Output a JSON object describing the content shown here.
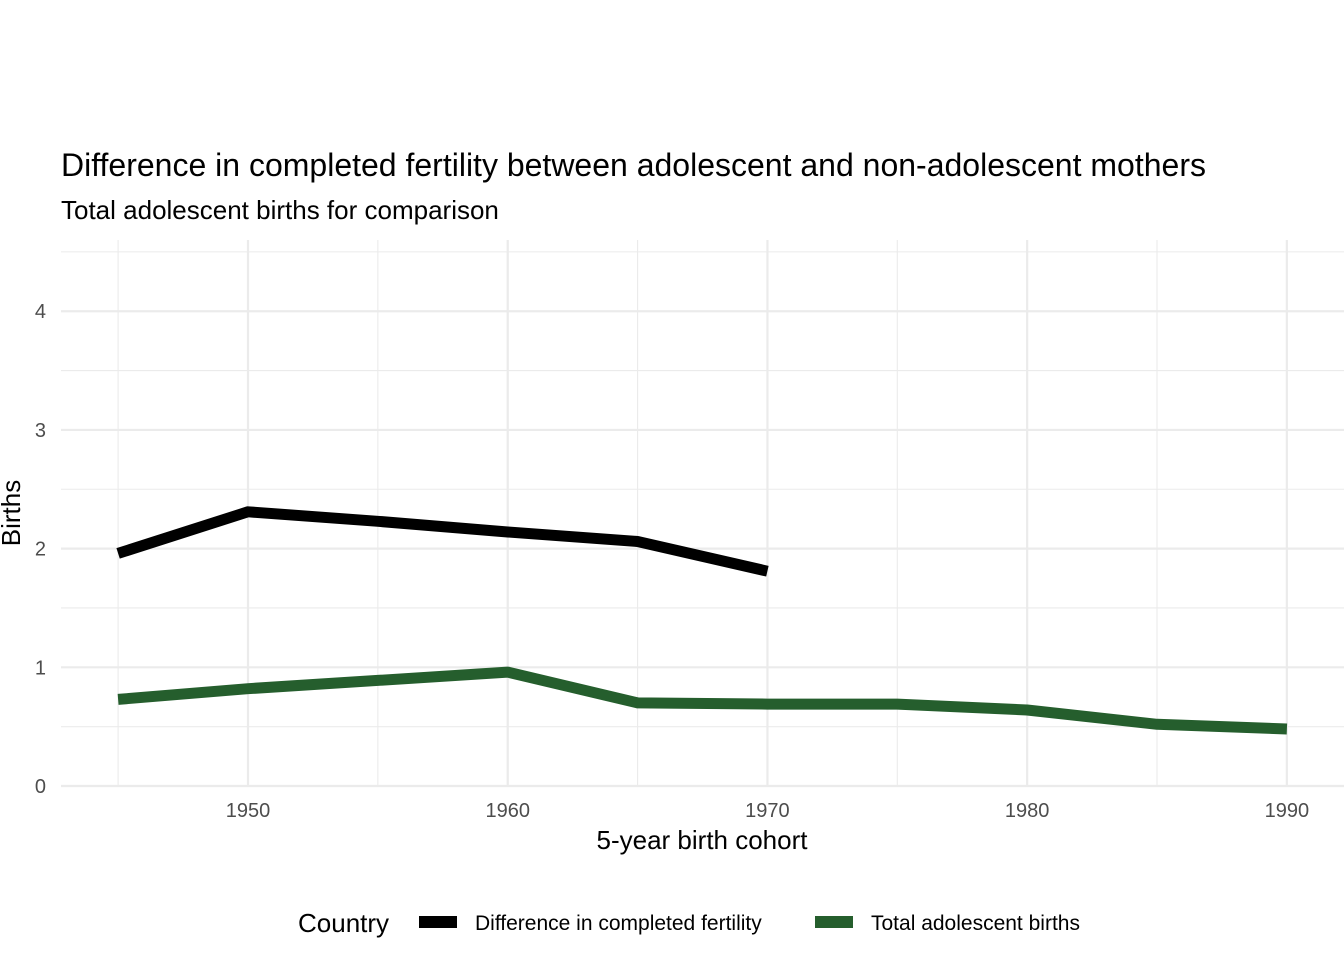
{
  "chart_data": {
    "type": "line",
    "title": "Difference in completed fertility between adolescent and non-adolescent mothers",
    "subtitle": "Total adolescent births for comparison",
    "xlabel": "5-year birth cohort",
    "ylabel": "Births",
    "xlim": [
      1942.8,
      1992.2
    ],
    "ylim": [
      0,
      4.6
    ],
    "x_ticks": [
      1950,
      1960,
      1970,
      1980,
      1990
    ],
    "y_ticks": [
      0,
      1,
      2,
      3,
      4
    ],
    "grid": true,
    "legend": {
      "title": "Country",
      "position": "bottom"
    },
    "series": [
      {
        "name": "Difference in completed fertility",
        "color": "#000000",
        "x": [
          1945,
          1950,
          1955,
          1960,
          1965,
          1970
        ],
        "y": [
          1.96,
          2.31,
          2.23,
          2.14,
          2.06,
          1.81
        ]
      },
      {
        "name": "Total adolescent births",
        "color": "#255e2d",
        "x": [
          1945,
          1950,
          1955,
          1960,
          1965,
          1970,
          1975,
          1980,
          1985,
          1990
        ],
        "y": [
          0.73,
          0.82,
          0.89,
          0.96,
          0.7,
          0.69,
          0.69,
          0.64,
          0.52,
          0.48
        ]
      }
    ]
  }
}
